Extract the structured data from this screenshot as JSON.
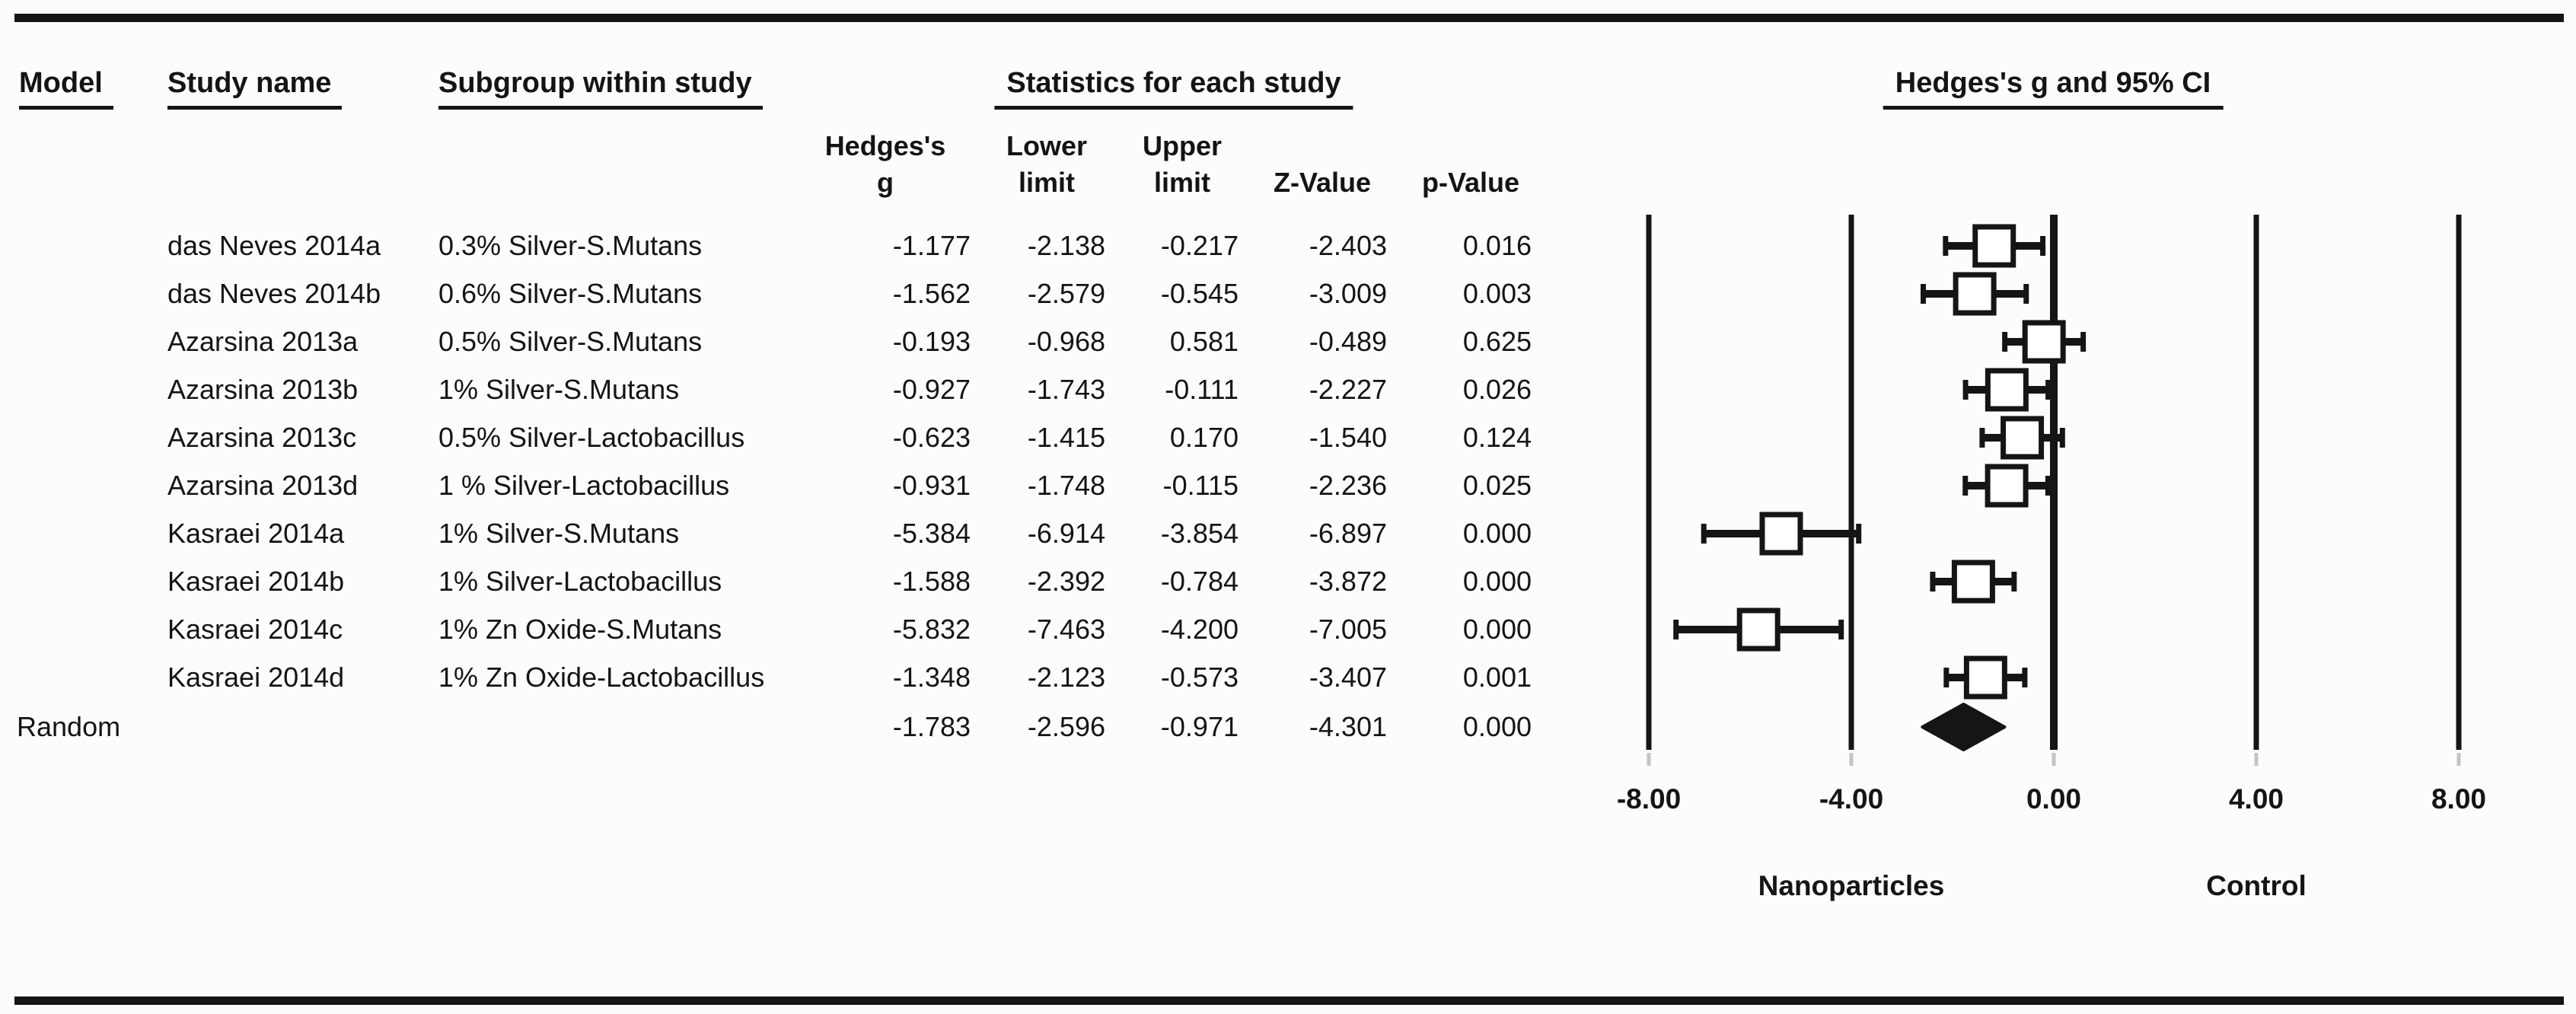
{
  "figure": {
    "kind": "forest plot (meta-analysis of nanoparticle antibacterial effect)",
    "background": "#fcfcfc",
    "ink": "#151515"
  },
  "headers": {
    "model": "Model",
    "study_name": "Study name",
    "subgroup": "Subgroup within study",
    "statistics": "Statistics for each study",
    "ci": "Hedges's g and 95% CI"
  },
  "stat_columns": [
    {
      "label": "Hedges's g",
      "lines": [
        "Hedges's",
        "g"
      ]
    },
    {
      "label": "Lower limit",
      "lines": [
        "Lower",
        "limit"
      ]
    },
    {
      "label": "Upper limit",
      "lines": [
        "Upper",
        "limit"
      ]
    },
    {
      "label": "Z-Value",
      "lines": [
        "Z-Value"
      ]
    },
    {
      "label": "p-Value",
      "lines": [
        "p-Value"
      ]
    }
  ],
  "chart_data": {
    "type": "forest",
    "effect_measure": "Hedges's g and 95% CI",
    "axis": {
      "ticks": [
        -8,
        -4,
        0,
        4,
        8
      ],
      "tick_labels": [
        "-8.00",
        "-4.00",
        "0.00",
        "4.00",
        "8.00"
      ],
      "xlim": [
        -8,
        8
      ],
      "zero_line": 0
    },
    "group_labels": [
      {
        "text": "Nanoparticles",
        "x": -4
      },
      {
        "text": "Control",
        "x": 4
      }
    ],
    "studies": [
      {
        "model": "",
        "study": "das Neves 2014a",
        "subgroup": "0.3% Silver-S.Mutans",
        "g": -1.177,
        "lower": -2.138,
        "upper": -0.217,
        "z": -2.403,
        "p": 0.016
      },
      {
        "model": "",
        "study": "das Neves 2014b",
        "subgroup": "0.6% Silver-S.Mutans",
        "g": -1.562,
        "lower": -2.579,
        "upper": -0.545,
        "z": -3.009,
        "p": 0.003
      },
      {
        "model": "",
        "study": "Azarsina 2013a",
        "subgroup": "0.5% Silver-S.Mutans",
        "g": -0.193,
        "lower": -0.968,
        "upper": 0.581,
        "z": -0.489,
        "p": 0.625
      },
      {
        "model": "",
        "study": "Azarsina 2013b",
        "subgroup": "1% Silver-S.Mutans",
        "g": -0.927,
        "lower": -1.743,
        "upper": -0.111,
        "z": -2.227,
        "p": 0.026
      },
      {
        "model": "",
        "study": "Azarsina 2013c",
        "subgroup": "0.5% Silver-Lactobacillus",
        "g": -0.623,
        "lower": -1.415,
        "upper": 0.17,
        "z": -1.54,
        "p": 0.124
      },
      {
        "model": "",
        "study": "Azarsina 2013d",
        "subgroup": "1 % Silver-Lactobacillus",
        "g": -0.931,
        "lower": -1.748,
        "upper": -0.115,
        "z": -2.236,
        "p": 0.025
      },
      {
        "model": "",
        "study": "Kasraei 2014a",
        "subgroup": "1% Silver-S.Mutans",
        "g": -5.384,
        "lower": -6.914,
        "upper": -3.854,
        "z": -6.897,
        "p": 0.0
      },
      {
        "model": "",
        "study": "Kasraei 2014b",
        "subgroup": "1% Silver-Lactobacillus",
        "g": -1.588,
        "lower": -2.392,
        "upper": -0.784,
        "z": -3.872,
        "p": 0.0
      },
      {
        "model": "",
        "study": "Kasraei 2014c",
        "subgroup": "1% Zn Oxide-S.Mutans",
        "g": -5.832,
        "lower": -7.463,
        "upper": -4.2,
        "z": -7.005,
        "p": 0.0
      },
      {
        "model": "",
        "study": "Kasraei 2014d",
        "subgroup": "1% Zn Oxide-Lactobacillus",
        "g": -1.348,
        "lower": -2.123,
        "upper": -0.573,
        "z": -3.407,
        "p": 0.001
      },
      {
        "model": "Random",
        "study": "",
        "subgroup": "",
        "g": -1.783,
        "lower": -2.596,
        "upper": -0.971,
        "z": -4.301,
        "p": 0.0,
        "summary": true
      }
    ]
  }
}
